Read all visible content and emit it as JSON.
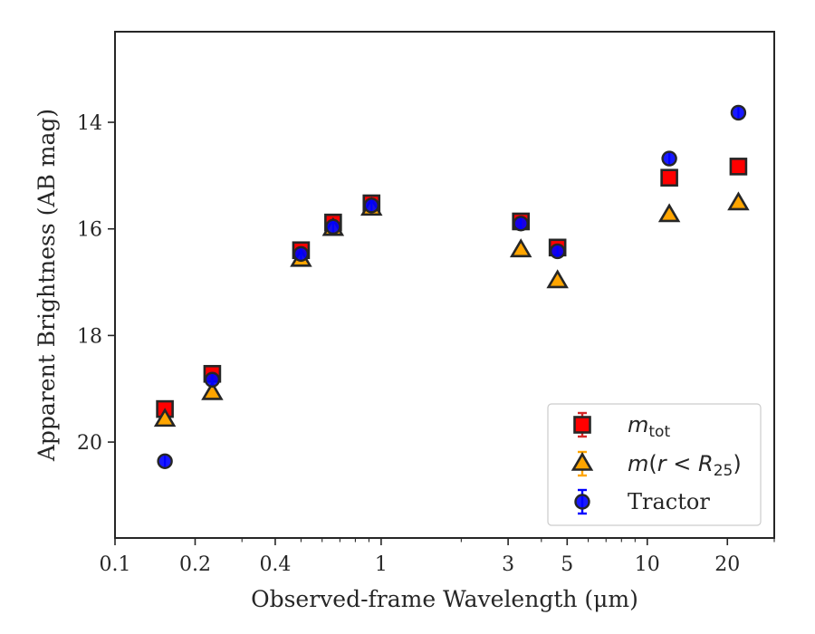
{
  "chart_data": {
    "type": "scatter",
    "xlabel": "Observed-frame Wavelength (μm)",
    "ylabel": "Apparent Brightness (AB mag)",
    "x_scale": "log",
    "xlim": [
      0.1,
      30
    ],
    "ylim": [
      21.8,
      12.3
    ],
    "y_inverted": true,
    "x_ticks": [
      0.1,
      0.2,
      0.4,
      1,
      3,
      5,
      10,
      20
    ],
    "x_tick_labels": [
      "0.1",
      "0.2",
      "0.4",
      "1",
      "3",
      "5",
      "10",
      "20"
    ],
    "y_ticks": [
      14,
      16,
      18,
      20
    ],
    "y_tick_labels": [
      "14",
      "16",
      "18",
      "20"
    ],
    "grid": false,
    "legend_position": "lower-right",
    "series": [
      {
        "name": "m_tot",
        "legend_label": "m_tot",
        "marker": "square",
        "color": "#ff0000",
        "errorbar_color": "#d62728",
        "points": [
          {
            "x": 0.154,
            "y": 19.38
          },
          {
            "x": 0.232,
            "y": 18.72
          },
          {
            "x": 0.5,
            "y": 16.4
          },
          {
            "x": 0.66,
            "y": 15.88
          },
          {
            "x": 0.92,
            "y": 15.52
          },
          {
            "x": 3.35,
            "y": 15.86
          },
          {
            "x": 4.6,
            "y": 16.35
          },
          {
            "x": 12.1,
            "y": 15.04
          },
          {
            "x": 22.0,
            "y": 14.83
          }
        ]
      },
      {
        "name": "m(r<R25)",
        "legend_label": "m(r<R25)",
        "marker": "triangle",
        "color": "#ffa500",
        "errorbar_color": "#ffa500",
        "points": [
          {
            "x": 0.154,
            "y": 19.58
          },
          {
            "x": 0.232,
            "y": 19.08
          },
          {
            "x": 0.5,
            "y": 16.58
          },
          {
            "x": 0.66,
            "y": 16.0
          },
          {
            "x": 0.92,
            "y": 15.62
          },
          {
            "x": 3.35,
            "y": 16.4
          },
          {
            "x": 4.6,
            "y": 16.98
          },
          {
            "x": 12.1,
            "y": 15.74
          },
          {
            "x": 22.0,
            "y": 15.52
          }
        ]
      },
      {
        "name": "Tractor",
        "legend_label": "Tractor",
        "marker": "circle",
        "color": "#0000ff",
        "errorbar_color": "#0000ff",
        "points": [
          {
            "x": 0.154,
            "y": 20.36
          },
          {
            "x": 0.232,
            "y": 18.83
          },
          {
            "x": 0.5,
            "y": 16.47
          },
          {
            "x": 0.66,
            "y": 15.96
          },
          {
            "x": 0.92,
            "y": 15.56
          },
          {
            "x": 3.35,
            "y": 15.9
          },
          {
            "x": 4.6,
            "y": 16.42
          },
          {
            "x": 12.1,
            "y": 14.68
          },
          {
            "x": 22.0,
            "y": 13.82
          }
        ]
      }
    ]
  }
}
